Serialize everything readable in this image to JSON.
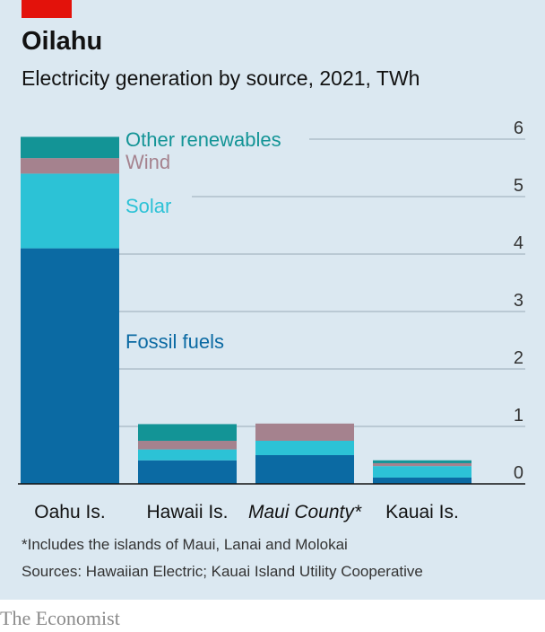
{
  "title": "Oilahu",
  "subtitle": "Electricity generation by source, 2021, TWh",
  "footnote": "*Includes the islands of Maui, Lanai and Molokai",
  "sources": "Sources: Hawaiian Electric; Kauai Island Utility Cooperative",
  "brand": "The Economist",
  "colors": {
    "Fossil fuels": "#0b6aa3",
    "Solar": "#2cc2d6",
    "Wind": "#a5828e",
    "Other renewables": "#139496",
    "accent": "#e3120b"
  },
  "chart_data": {
    "type": "bar",
    "stacked": true,
    "unit": "TWh",
    "categories": [
      "Oahu Is.",
      "Hawaii Is.",
      "Maui County*",
      "Kauai Is."
    ],
    "italic_categories": [
      "Maui County*"
    ],
    "series": [
      {
        "name": "Fossil fuels",
        "values": [
          4.1,
          0.41,
          0.5,
          0.11
        ]
      },
      {
        "name": "Solar",
        "values": [
          1.3,
          0.19,
          0.25,
          0.2
        ]
      },
      {
        "name": "Wind",
        "values": [
          0.27,
          0.15,
          0.3,
          0.05
        ]
      },
      {
        "name": "Other renewables",
        "values": [
          0.37,
          0.29,
          0.0,
          0.05
        ]
      }
    ],
    "ylim": [
      0,
      6
    ],
    "yticks": [
      0,
      1,
      2,
      3,
      4,
      5,
      6
    ],
    "axis_side": "right",
    "grid": true,
    "legend": "labels placed on chart"
  }
}
